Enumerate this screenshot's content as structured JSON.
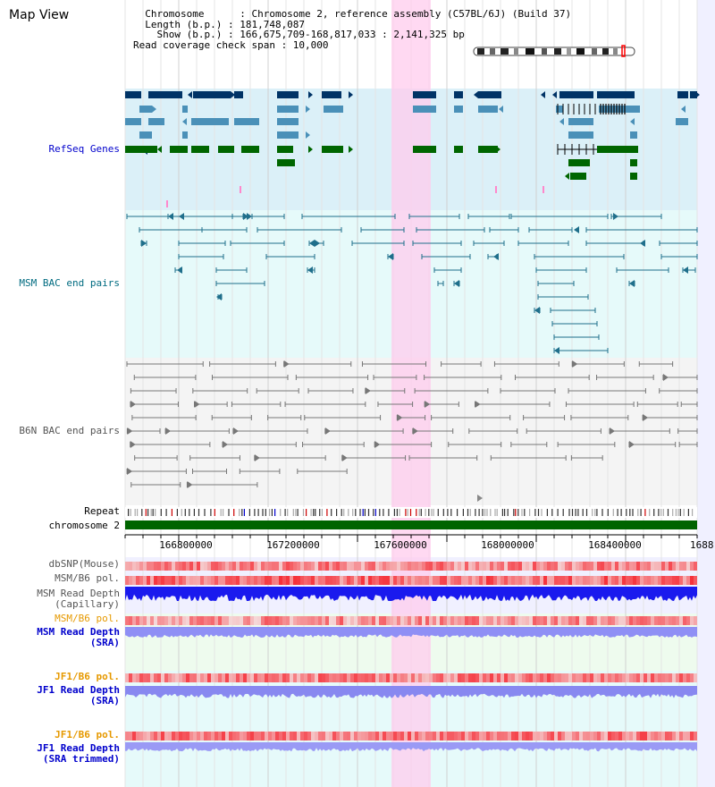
{
  "view_title": "Map View",
  "info_lines": [
    "  Chromosome      : Chromosome 2, reference assembly (C57BL/6J) (Build 37)",
    "  Length (b.p.) : 181,748,087",
    "    Show (b.p.) : 166,675,709-168,817,033 : 2,141,325 bp",
    "Read coverage check span : 10,000"
  ],
  "tracks": {
    "refseq": "RefSeq Genes",
    "msm_bac": "MSM BAC end pairs",
    "b6n_bac": "B6N BAC end pairs",
    "repeat": "Repeat",
    "chromosome": "chromosome 2",
    "dbsnp": "dbSNP(Mouse)",
    "msm_b6_pol": "MSM/B6 pol.",
    "msm_depth_cap": "MSM Read Depth\n(Capillary)",
    "msm_b6_pol_2": "MSM/B6 pol.",
    "msm_depth_sra": "MSM Read Depth\n(SRA)",
    "jf1_b6_pol": "JF1/B6 pol.",
    "jf1_depth_sra": "JF1 Read Depth\n(SRA)",
    "jf1_b6_pol_2": "JF1/B6 pol.",
    "jf1_depth_trim": "JF1 Read Depth\n(SRA trimmed)"
  },
  "axis_ticks": [
    "166800000",
    "167200000",
    "167600000",
    "168000000",
    "168400000",
    "1688"
  ],
  "colors": {
    "gene_navy": "#003366",
    "gene_blue": "#4a90b8",
    "gene_green": "#006600",
    "msm_line": "#1f6f8b",
    "b6n_line": "#777777",
    "highlight": "#ffccee",
    "chromosome_bar": "#006400",
    "label_blue": "#0000cc",
    "label_orange": "#e69900",
    "label_teal": "#006b80"
  }
}
